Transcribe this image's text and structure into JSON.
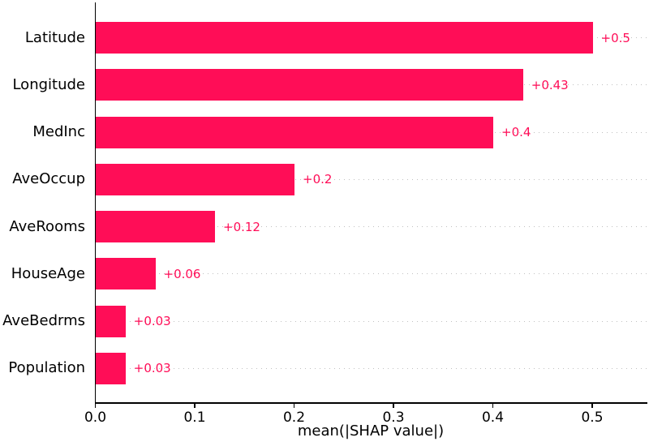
{
  "chart_data": {
    "type": "bar",
    "orientation": "horizontal",
    "title": "",
    "categories": [
      "Latitude",
      "Longitude",
      "MedInc",
      "AveOccup",
      "AveRooms",
      "HouseAge",
      "AveBedrms",
      "Population"
    ],
    "values": [
      0.5,
      0.43,
      0.4,
      0.2,
      0.12,
      0.06,
      0.03,
      0.03
    ],
    "bar_labels": [
      "+0.5",
      "+0.43",
      "+0.4",
      "+0.2",
      "+0.12",
      "+0.06",
      "+0.03",
      "+0.03"
    ],
    "xlabel": "mean(|SHAP value|)",
    "x_ticks": [
      "0.0",
      "0.1",
      "0.2",
      "0.3",
      "0.4",
      "0.5"
    ],
    "x_tick_values": [
      0.0,
      0.1,
      0.2,
      0.3,
      0.4,
      0.5
    ],
    "xlim": [
      0.0,
      0.555
    ],
    "bar_color": "#ff0d57",
    "value_label_color": "#ff0d57",
    "axis_color": "#000000",
    "grid": true,
    "gridline_style": "dotted",
    "legend_position": "none"
  }
}
